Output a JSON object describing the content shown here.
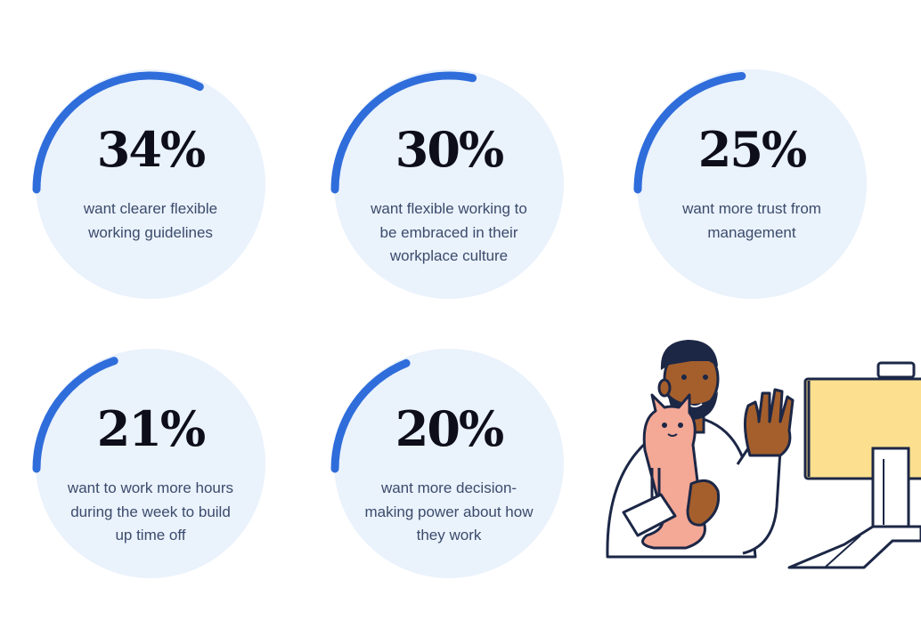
{
  "accent_color": "#2f6ddb",
  "disc_color": "#eaf2fc",
  "chart_data": {
    "type": "radial-progress",
    "stats": [
      {
        "value": 34,
        "display": "34%",
        "caption": "want clearer flexible working guidelines"
      },
      {
        "value": 30,
        "display": "30%",
        "caption": "want flexible working to be embraced in their workplace culture"
      },
      {
        "value": 25,
        "display": "25%",
        "caption": "want more trust from management"
      },
      {
        "value": 21,
        "display": "21%",
        "caption": "want to work more hours during the week to build up time off"
      },
      {
        "value": 20,
        "display": "20%",
        "caption": "want more decision-making power about how they work"
      }
    ]
  },
  "illustration": {
    "icon": "man-holding-cat-waving-at-monitor-illustration"
  }
}
